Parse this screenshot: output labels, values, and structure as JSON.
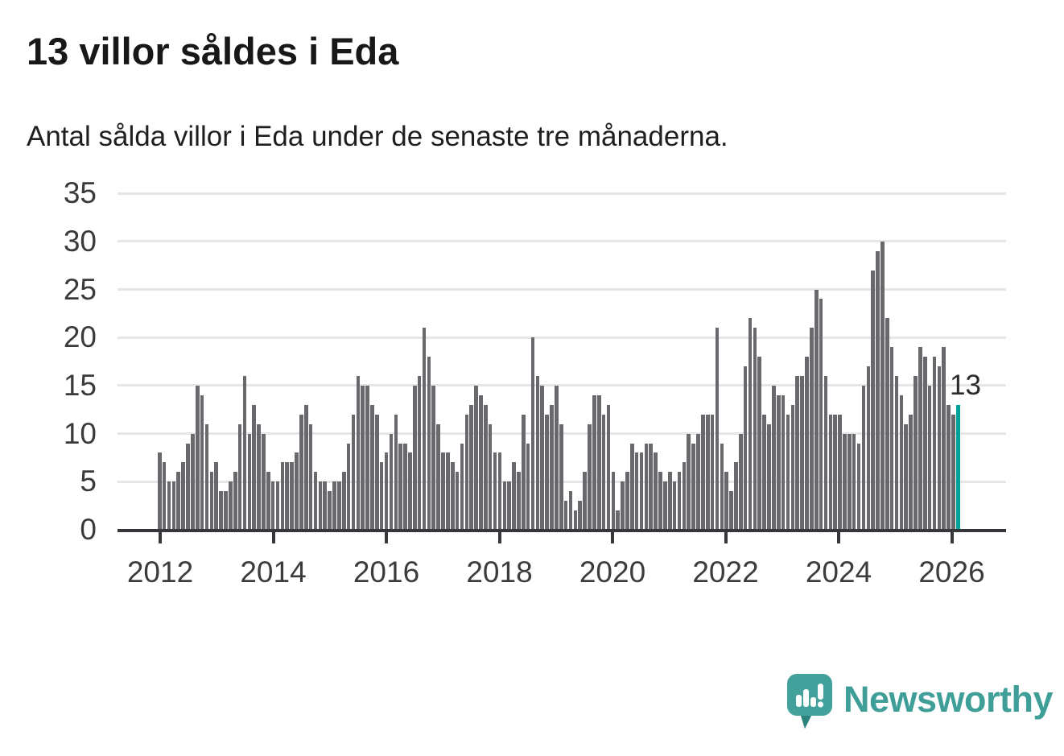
{
  "header": {
    "title": "13 villor såldes i Eda",
    "subtitle": "Antal sålda villor i Eda under de senaste tre månaderna."
  },
  "chart_data": {
    "type": "bar",
    "title": "13 villor såldes i Eda",
    "subtitle": "Antal sålda villor i Eda under de senaste tre månaderna.",
    "ylim": [
      0,
      35
    ],
    "y_ticks": [
      0,
      5,
      10,
      15,
      20,
      25,
      30,
      35
    ],
    "x_tick_labels": [
      "2012",
      "2014",
      "2016",
      "2018",
      "2020",
      "2022",
      "2024",
      "2026"
    ],
    "grid": "horizontal",
    "bar_color": "#68686d",
    "values": [
      8,
      7,
      5,
      5,
      6,
      7,
      9,
      10,
      15,
      14,
      11,
      6,
      7,
      4,
      4,
      5,
      6,
      11,
      16,
      10,
      13,
      11,
      10,
      6,
      5,
      5,
      7,
      7,
      7,
      8,
      12,
      13,
      11,
      6,
      5,
      5,
      4,
      5,
      5,
      6,
      9,
      12,
      16,
      15,
      15,
      13,
      12,
      7,
      8,
      10,
      12,
      9,
      9,
      8,
      15,
      16,
      21,
      18,
      15,
      11,
      8,
      8,
      7,
      6,
      9,
      12,
      13,
      15,
      14,
      13,
      11,
      8,
      8,
      5,
      5,
      7,
      6,
      12,
      9,
      20,
      16,
      15,
      12,
      13,
      15,
      11,
      3,
      4,
      2,
      3,
      6,
      11,
      14,
      14,
      12,
      13,
      6,
      2,
      5,
      6,
      9,
      8,
      8,
      9,
      9,
      8,
      6,
      5,
      6,
      5,
      6,
      7,
      10,
      9,
      10,
      12,
      12,
      12,
      21,
      9,
      6,
      4,
      7,
      10,
      17,
      22,
      21,
      18,
      12,
      11,
      15,
      14,
      14,
      12,
      13,
      16,
      16,
      18,
      21,
      25,
      24,
      16,
      12,
      12,
      12,
      10,
      10,
      10,
      9,
      15,
      17,
      27,
      29,
      30,
      22,
      19,
      16,
      14,
      11,
      12,
      16,
      19,
      18,
      15,
      18,
      17,
      19,
      13,
      12,
      13
    ],
    "highlight": {
      "index_from_end": 1,
      "value": 13,
      "label": "13",
      "color": "#00a29a"
    }
  },
  "branding": {
    "logo_text": "Newsworthy",
    "logo_color": "#3f9e98",
    "logo_icon": "speech-bubble-bar-chart"
  }
}
